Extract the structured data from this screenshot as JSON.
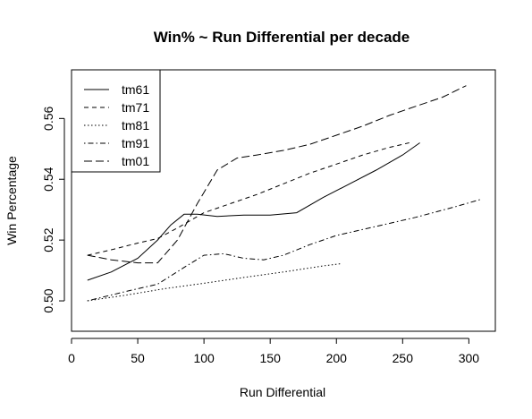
{
  "chart_data": {
    "type": "line",
    "title": "Win% ~ Run Differential per decade",
    "xlabel": "Run Differential",
    "ylabel": "Win Percentage",
    "xlim": [
      0,
      320
    ],
    "ylim": [
      0.49,
      0.576
    ],
    "xticks": [
      0,
      50,
      100,
      150,
      200,
      250,
      300
    ],
    "yticks": [
      0.5,
      0.52,
      0.54,
      0.56
    ],
    "xtick_labels": [
      "0",
      "50",
      "100",
      "150",
      "200",
      "250",
      "300"
    ],
    "ytick_labels": [
      "0.50",
      "0.52",
      "0.54",
      "0.56"
    ],
    "grid": false,
    "legend_position": "top-left",
    "colors": {
      "line": "#000000",
      "background": "#ffffff"
    },
    "series": [
      {
        "name": "tm61",
        "dash": "solid",
        "x": [
          12,
          30,
          50,
          65,
          75,
          85,
          95,
          110,
          130,
          150,
          170,
          190,
          210,
          230,
          250,
          263
        ],
        "y": [
          0.5068,
          0.5095,
          0.514,
          0.52,
          0.525,
          0.5285,
          0.5285,
          0.5278,
          0.5282,
          0.5282,
          0.529,
          0.534,
          0.5385,
          0.543,
          0.548,
          0.552
        ]
      },
      {
        "name": "tm71",
        "dash": "dashed",
        "x": [
          12,
          30,
          50,
          65,
          80,
          100,
          120,
          140,
          160,
          180,
          200,
          220,
          240,
          255
        ],
        "y": [
          0.515,
          0.5168,
          0.519,
          0.5205,
          0.524,
          0.529,
          0.532,
          0.535,
          0.5385,
          0.542,
          0.545,
          0.548,
          0.5505,
          0.552
        ]
      },
      {
        "name": "tm81",
        "dash": "dotted",
        "x": [
          12,
          40,
          70,
          100,
          130,
          160,
          190,
          203
        ],
        "y": [
          0.5,
          0.5018,
          0.504,
          0.5058,
          0.5077,
          0.5095,
          0.5115,
          0.5122
        ]
      },
      {
        "name": "tm91",
        "dash": "dotdash",
        "x": [
          12,
          40,
          65,
          85,
          100,
          115,
          130,
          145,
          160,
          180,
          200,
          230,
          260,
          290,
          310
        ],
        "y": [
          0.5,
          0.503,
          0.5055,
          0.511,
          0.515,
          0.5155,
          0.514,
          0.5135,
          0.515,
          0.5185,
          0.5215,
          0.5245,
          0.5275,
          0.531,
          0.5335
        ]
      },
      {
        "name": "tm01",
        "dash": "longdash",
        "x": [
          12,
          30,
          50,
          65,
          80,
          95,
          110,
          125,
          140,
          160,
          180,
          200,
          220,
          240,
          260,
          280,
          298
        ],
        "y": [
          0.515,
          0.5135,
          0.5125,
          0.5125,
          0.52,
          0.532,
          0.543,
          0.547,
          0.548,
          0.5495,
          0.5515,
          0.5545,
          0.5575,
          0.561,
          0.564,
          0.567,
          0.5708
        ]
      }
    ]
  }
}
